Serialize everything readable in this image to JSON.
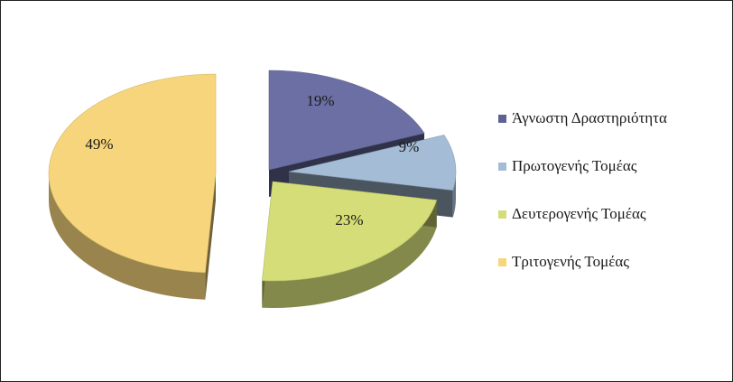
{
  "chart_data": {
    "type": "pie",
    "style": "3d-exploded",
    "title": "",
    "slices": [
      {
        "label": "Άγνωστη Δραστηριότητα",
        "value": 19,
        "display": "19%",
        "color": "#6B6FA3"
      },
      {
        "label": "Πρωτογενής Τομέας",
        "value": 9,
        "display": "9%",
        "color": "#A4BCD6"
      },
      {
        "label": "Δευτερογενής Τομέας",
        "value": 23,
        "display": "23%",
        "color": "#D4DD78"
      },
      {
        "label": "Τριτογενής Τομέας",
        "value": 49,
        "display": "49%",
        "color": "#F7D57C"
      }
    ],
    "legend_placement": "right"
  },
  "legend": {
    "items": [
      {
        "label": "Άγνωστη Δραστηριότητα",
        "color": "#6B6FA3"
      },
      {
        "label": "Πρωτογενής Τομέας",
        "color": "#A4BCD6"
      },
      {
        "label": "Δευτερογενής Τομέας",
        "color": "#D4DD78"
      },
      {
        "label": "Τριτογενής Τομέας",
        "color": "#F7D57C"
      }
    ]
  }
}
